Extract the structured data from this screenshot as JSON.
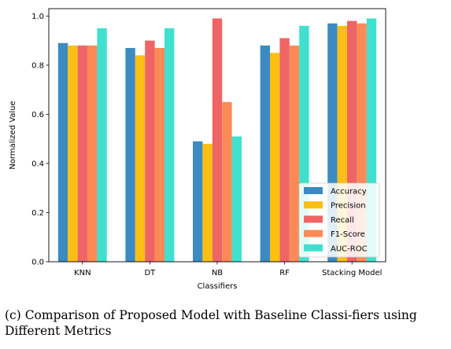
{
  "chart_data": {
    "type": "bar",
    "categories": [
      "KNN",
      "DT",
      "NB",
      "RF",
      "Stacking Model"
    ],
    "series": [
      {
        "name": "Accuracy",
        "color": "#3b8bc2",
        "values": [
          0.89,
          0.87,
          0.49,
          0.88,
          0.97
        ]
      },
      {
        "name": "Precision",
        "color": "#fbbf14",
        "values": [
          0.88,
          0.84,
          0.48,
          0.85,
          0.96
        ]
      },
      {
        "name": "Recall",
        "color": "#ef6464",
        "values": [
          0.88,
          0.9,
          0.99,
          0.91,
          0.98
        ]
      },
      {
        "name": "F1-Score",
        "color": "#fb8a57",
        "values": [
          0.88,
          0.87,
          0.65,
          0.88,
          0.97
        ]
      },
      {
        "name": "AUC-ROC",
        "color": "#40e0cf",
        "values": [
          0.95,
          0.95,
          0.51,
          0.96,
          0.99
        ]
      }
    ],
    "xlabel": "Classifiers",
    "ylabel": "Normalized Value",
    "ylim": [
      0,
      1.03
    ],
    "yticks": [
      "0.0",
      "0.2",
      "0.4",
      "0.6",
      "0.8",
      "1.0"
    ],
    "legend_position": "bottom-right",
    "grid": false
  },
  "caption": "(c) Comparison of Proposed Model with Baseline Classi-fiers using Different Metrics"
}
